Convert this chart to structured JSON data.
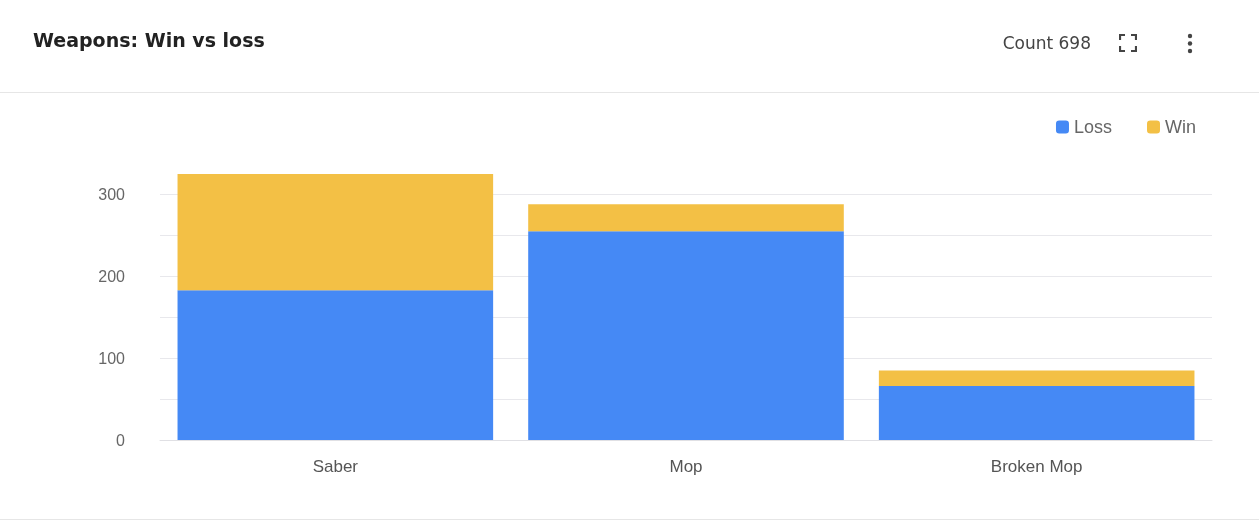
{
  "chart_data": {
    "type": "bar",
    "title": "Weapons: Win vs loss",
    "annotations": [
      "Count 698"
    ],
    "categories": [
      "Saber",
      "Mop",
      "Broken Mop"
    ],
    "series": [
      {
        "name": "Loss",
        "color": "#4589f5",
        "values": [
          183,
          255,
          66
        ]
      },
      {
        "name": "Win",
        "color": "#f3c045",
        "values": [
          142,
          33,
          19
        ]
      }
    ],
    "stacked": true,
    "ylim": [
      0,
      325
    ],
    "yticks": [
      0,
      {
        "value": 50,
        "label": null
      },
      100,
      {
        "value": 150,
        "label": null
      },
      200,
      {
        "value": 250,
        "label": null
      },
      300
    ],
    "grid": "y",
    "legend": "top right"
  }
}
